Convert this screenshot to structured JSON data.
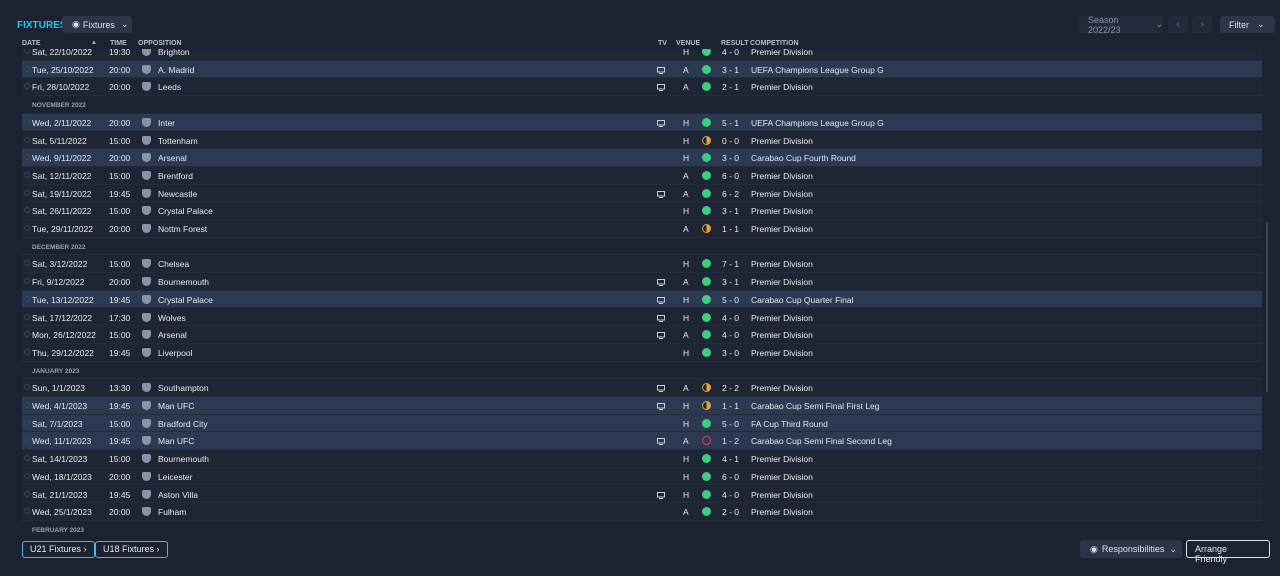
{
  "header": {
    "title": "FIXTURES",
    "view_button": "Fixtures",
    "season": "Season 2022/23",
    "filter": "Filter"
  },
  "columns": [
    "DATE",
    "TIME",
    "OPPOSITION",
    "TV",
    "VENUE",
    "RESULT",
    "COMPETITION"
  ],
  "rows": [
    {
      "date": "Sat, 22/10/2022",
      "time": "19:30",
      "opposition": "Brighton",
      "tv": false,
      "venue": "H",
      "outcome": "win",
      "result": "4 - 0",
      "competition": "Premier Division",
      "highlight": false
    },
    {
      "date": "Tue, 25/10/2022",
      "time": "20:00",
      "opposition": "A. Madrid",
      "tv": true,
      "venue": "A",
      "outcome": "win",
      "result": "3 - 1",
      "competition": "UEFA Champions League Group G",
      "highlight": true
    },
    {
      "date": "Fri, 28/10/2022",
      "time": "20:00",
      "opposition": "Leeds",
      "tv": true,
      "venue": "A",
      "outcome": "win",
      "result": "2 - 1",
      "competition": "Premier Division",
      "highlight": false
    },
    {
      "month": "NOVEMBER 2022"
    },
    {
      "date": "Wed, 2/11/2022",
      "time": "20:00",
      "opposition": "Inter",
      "tv": true,
      "venue": "H",
      "outcome": "win",
      "result": "5 - 1",
      "competition": "UEFA Champions League Group G",
      "highlight": true
    },
    {
      "date": "Sat, 5/11/2022",
      "time": "15:00",
      "opposition": "Tottenham",
      "tv": false,
      "venue": "H",
      "outcome": "draw",
      "result": "0 - 0",
      "competition": "Premier Division",
      "highlight": false
    },
    {
      "date": "Wed, 9/11/2022",
      "time": "20:00",
      "opposition": "Arsenal",
      "tv": false,
      "venue": "H",
      "outcome": "win",
      "result": "3 - 0",
      "competition": "Carabao Cup Fourth Round",
      "highlight": true
    },
    {
      "date": "Sat, 12/11/2022",
      "time": "15:00",
      "opposition": "Brentford",
      "tv": false,
      "venue": "A",
      "outcome": "win",
      "result": "6 - 0",
      "competition": "Premier Division",
      "highlight": false
    },
    {
      "date": "Sat, 19/11/2022",
      "time": "19:45",
      "opposition": "Newcastle",
      "tv": true,
      "venue": "A",
      "outcome": "win",
      "result": "6 - 2",
      "competition": "Premier Division",
      "highlight": false
    },
    {
      "date": "Sat, 26/11/2022",
      "time": "15:00",
      "opposition": "Crystal Palace",
      "tv": false,
      "venue": "H",
      "outcome": "win",
      "result": "3 - 1",
      "competition": "Premier Division",
      "highlight": false
    },
    {
      "date": "Tue, 29/11/2022",
      "time": "20:00",
      "opposition": "Nottm Forest",
      "tv": false,
      "venue": "A",
      "outcome": "draw",
      "result": "1 - 1",
      "competition": "Premier Division",
      "highlight": false
    },
    {
      "month": "DECEMBER 2022"
    },
    {
      "date": "Sat, 3/12/2022",
      "time": "15:00",
      "opposition": "Chelsea",
      "tv": false,
      "venue": "H",
      "outcome": "win",
      "result": "7 - 1",
      "competition": "Premier Division",
      "highlight": false
    },
    {
      "date": "Fri, 9/12/2022",
      "time": "20:00",
      "opposition": "Bournemouth",
      "tv": true,
      "venue": "A",
      "outcome": "win",
      "result": "3 - 1",
      "competition": "Premier Division",
      "highlight": false
    },
    {
      "date": "Tue, 13/12/2022",
      "time": "19:45",
      "opposition": "Crystal Palace",
      "tv": true,
      "venue": "H",
      "outcome": "win",
      "result": "5 - 0",
      "competition": "Carabao Cup Quarter Final",
      "highlight": true
    },
    {
      "date": "Sat, 17/12/2022",
      "time": "17:30",
      "opposition": "Wolves",
      "tv": true,
      "venue": "H",
      "outcome": "win",
      "result": "4 - 0",
      "competition": "Premier Division",
      "highlight": false
    },
    {
      "date": "Mon, 26/12/2022",
      "time": "15:00",
      "opposition": "Arsenal",
      "tv": true,
      "venue": "A",
      "outcome": "win",
      "result": "4 - 0",
      "competition": "Premier Division",
      "highlight": false
    },
    {
      "date": "Thu, 29/12/2022",
      "time": "19:45",
      "opposition": "Liverpool",
      "tv": false,
      "venue": "H",
      "outcome": "win",
      "result": "3 - 0",
      "competition": "Premier Division",
      "highlight": false
    },
    {
      "month": "JANUARY 2023"
    },
    {
      "date": "Sun, 1/1/2023",
      "time": "13:30",
      "opposition": "Southampton",
      "tv": true,
      "venue": "A",
      "outcome": "draw",
      "result": "2 - 2",
      "competition": "Premier Division",
      "highlight": false
    },
    {
      "date": "Wed, 4/1/2023",
      "time": "19:45",
      "opposition": "Man UFC",
      "tv": true,
      "venue": "H",
      "outcome": "draw",
      "result": "1 - 1",
      "competition": "Carabao Cup Semi Final First Leg",
      "highlight": true
    },
    {
      "date": "Sat, 7/1/2023",
      "time": "15:00",
      "opposition": "Bradford City",
      "tv": false,
      "venue": "H",
      "outcome": "win",
      "result": "5 - 0",
      "competition": "FA Cup Third Round",
      "highlight": true
    },
    {
      "date": "Wed, 11/1/2023",
      "time": "19:45",
      "opposition": "Man UFC",
      "tv": true,
      "venue": "A",
      "outcome": "loss",
      "result": "1 - 2",
      "competition": "Carabao Cup Semi Final Second Leg",
      "highlight": true
    },
    {
      "date": "Sat, 14/1/2023",
      "time": "15:00",
      "opposition": "Bournemouth",
      "tv": false,
      "venue": "H",
      "outcome": "win",
      "result": "4 - 1",
      "competition": "Premier Division",
      "highlight": false
    },
    {
      "date": "Wed, 18/1/2023",
      "time": "20:00",
      "opposition": "Leicester",
      "tv": false,
      "venue": "H",
      "outcome": "win",
      "result": "6 - 0",
      "competition": "Premier Division",
      "highlight": false
    },
    {
      "date": "Sat, 21/1/2023",
      "time": "19:45",
      "opposition": "Aston Villa",
      "tv": true,
      "venue": "H",
      "outcome": "win",
      "result": "4 - 0",
      "competition": "Premier Division",
      "highlight": false
    },
    {
      "date": "Wed, 25/1/2023",
      "time": "20:00",
      "opposition": "Fulham",
      "tv": false,
      "venue": "A",
      "outcome": "win",
      "result": "2 - 0",
      "competition": "Premier Division",
      "highlight": false
    },
    {
      "month": "FEBRUARY 2023"
    }
  ],
  "footer": {
    "u21": "U21 Fixtures",
    "u18": "U18 Fixtures",
    "responsibilities": "Responsibilities",
    "arrange": "Arrange Friendly"
  }
}
